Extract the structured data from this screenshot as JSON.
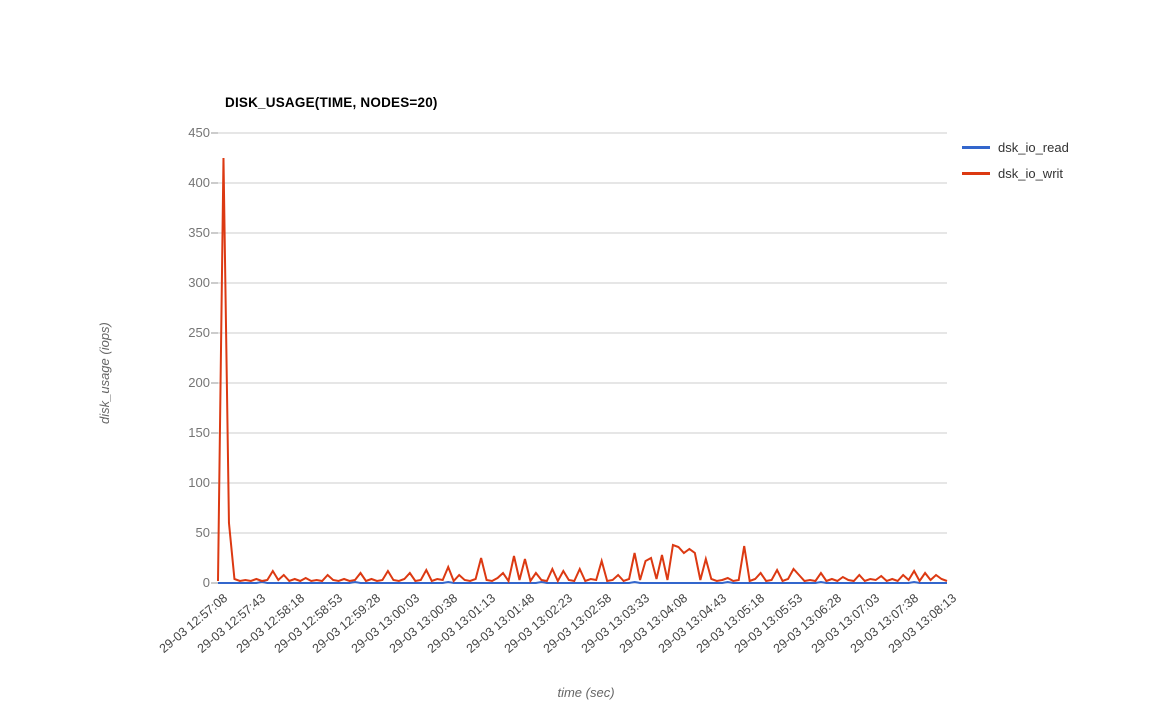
{
  "chart_data": {
    "type": "line",
    "title": "DISK_USAGE(TIME, NODES=20)",
    "xlabel": "time (sec)",
    "ylabel": "disk_usage (iops)",
    "ylim": [
      0,
      450
    ],
    "yticks": [
      0,
      50,
      100,
      150,
      200,
      250,
      300,
      350,
      400,
      450
    ],
    "grid": true,
    "legend_position": "right",
    "x_tick_interval_sec": 35,
    "x_tick_labels": [
      "29-03 12:57:08",
      "29-03 12:57:43",
      "29-03 12:58:18",
      "29-03 12:58:53",
      "29-03 12:59:28",
      "29-03 13:00:03",
      "29-03 13:00:38",
      "29-03 13:01:13",
      "29-03 13:01:48",
      "29-03 13:02:23",
      "29-03 13:02:58",
      "29-03 13:03:33",
      "29-03 13:04:08",
      "29-03 13:04:43",
      "29-03 13:05:18",
      "29-03 13:05:53",
      "29-03 13:06:28",
      "29-03 13:07:03",
      "29-03 13:07:38",
      "29-03 13:08:13"
    ],
    "x_start_sec": 0,
    "x_step_sec": 5,
    "x_end_sec": 665,
    "colors": {
      "grid": "#cccccc",
      "tick_stub": "#999999",
      "y_label": "#757575",
      "x_label": "#444444",
      "axis_title": "#666666",
      "title": "#000000"
    },
    "series": [
      {
        "name": "dsk_io_read",
        "color": "#3366cc",
        "values": [
          0,
          0,
          0,
          0,
          0,
          0,
          0,
          0,
          1,
          0,
          0,
          0,
          0,
          0,
          0,
          0,
          0,
          0,
          0,
          0,
          0,
          0,
          0,
          0,
          0,
          1,
          0,
          0,
          0,
          0,
          0,
          0,
          0,
          0,
          0,
          0,
          0,
          0,
          0,
          0,
          0,
          0,
          1,
          0,
          0,
          0,
          0,
          0,
          0,
          0,
          0,
          0,
          0,
          0,
          0,
          0,
          0,
          0,
          0,
          1,
          0,
          0,
          0,
          0,
          0,
          0,
          0,
          0,
          0,
          0,
          0,
          0,
          0,
          0,
          0,
          0,
          1,
          0,
          0,
          0,
          0,
          0,
          0,
          0,
          0,
          0,
          0,
          0,
          0,
          0,
          0,
          0,
          0,
          1,
          0,
          0,
          0,
          0,
          0,
          0,
          0,
          0,
          0,
          0,
          0,
          0,
          0,
          0,
          0,
          0,
          1,
          0,
          0,
          0,
          0,
          0,
          0,
          0,
          0,
          0,
          0,
          0,
          0,
          0,
          0,
          0,
          0,
          1,
          0,
          0,
          0,
          0,
          0,
          0
        ]
      },
      {
        "name": "dsk_io_writ",
        "color": "#dc3912",
        "values": [
          2,
          425,
          60,
          4,
          2,
          3,
          2,
          4,
          2,
          3,
          12,
          3,
          8,
          2,
          4,
          2,
          5,
          2,
          3,
          2,
          8,
          3,
          2,
          4,
          2,
          3,
          10,
          2,
          4,
          2,
          3,
          12,
          3,
          2,
          4,
          10,
          2,
          3,
          13,
          2,
          4,
          3,
          16,
          2,
          8,
          3,
          2,
          4,
          25,
          3,
          2,
          5,
          10,
          2,
          27,
          3,
          24,
          2,
          10,
          3,
          2,
          14,
          2,
          12,
          3,
          2,
          14,
          2,
          4,
          3,
          22,
          2,
          3,
          8,
          2,
          4,
          30,
          3,
          22,
          25,
          4,
          28,
          3,
          38,
          36,
          30,
          34,
          30,
          3,
          24,
          4,
          2,
          3,
          5,
          2,
          3,
          37,
          2,
          4,
          10,
          2,
          3,
          13,
          2,
          4,
          14,
          8,
          2,
          3,
          2,
          10,
          2,
          4,
          2,
          6,
          3,
          2,
          8,
          2,
          4,
          3,
          7,
          2,
          4,
          2,
          8,
          3,
          12,
          2,
          10,
          3,
          8,
          4,
          2
        ]
      }
    ]
  }
}
